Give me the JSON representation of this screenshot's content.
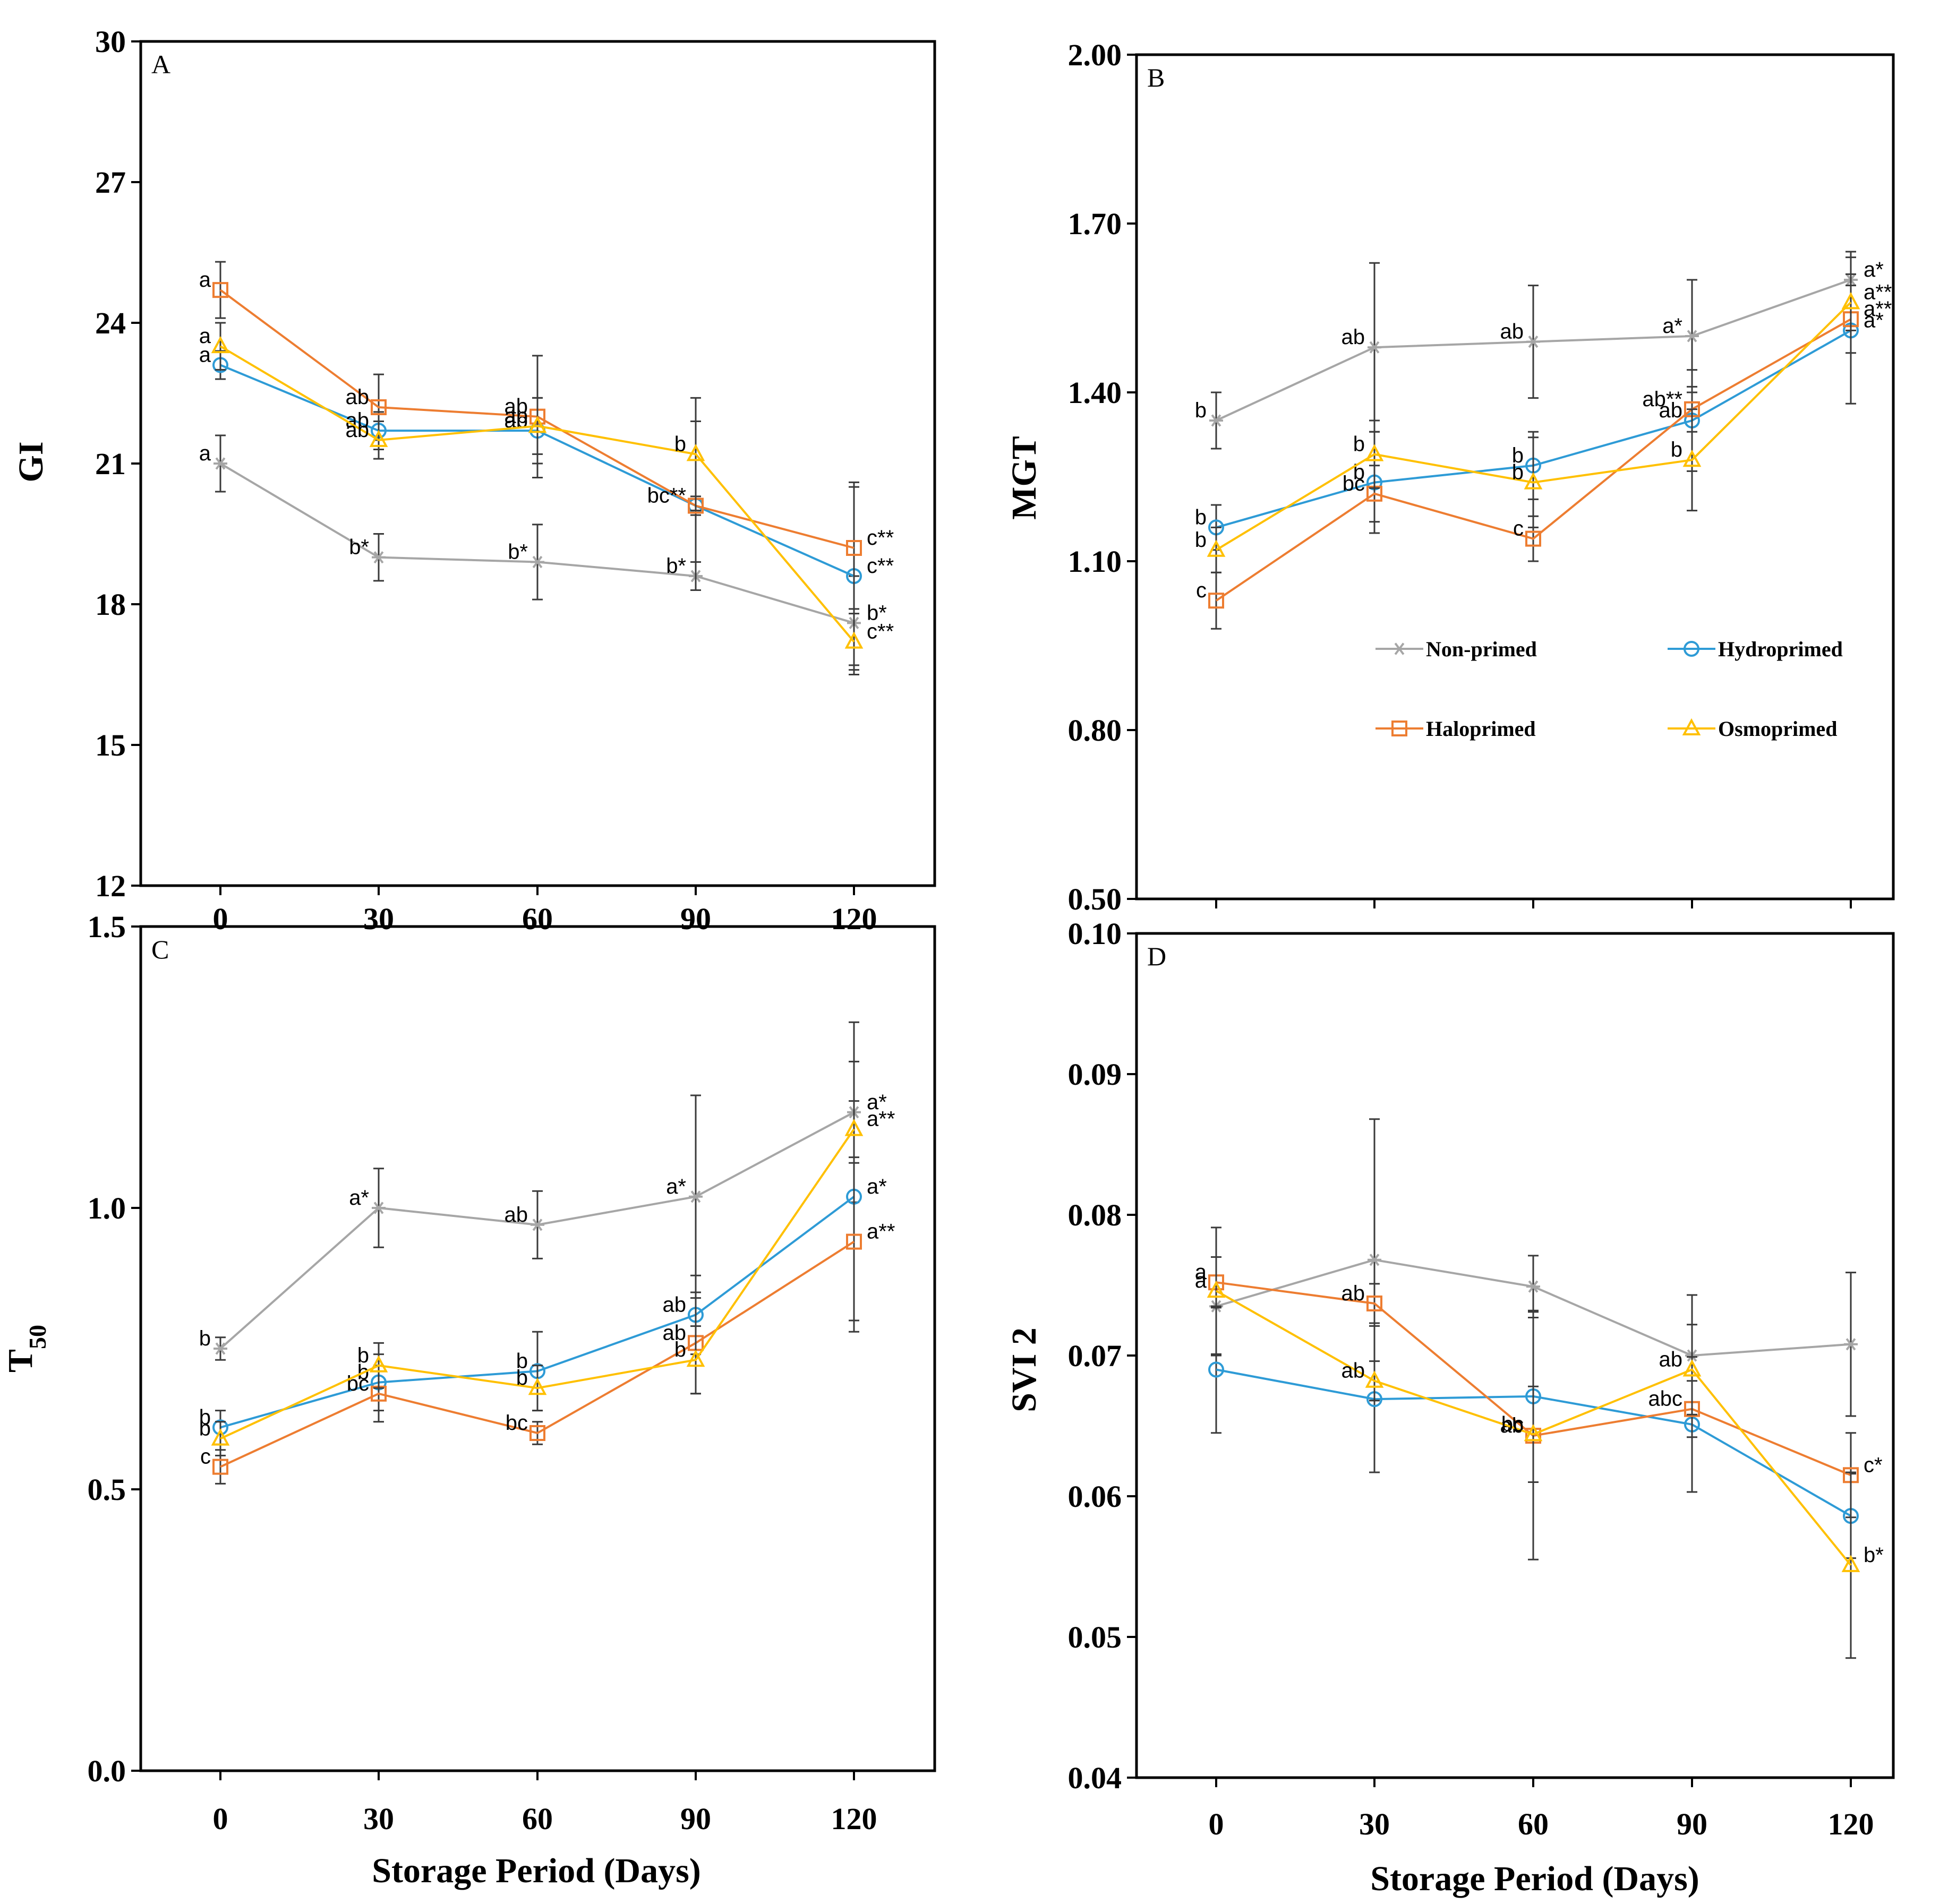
{
  "legend": {
    "non_primed": "Non-primed",
    "hydroprimed": "Hydroprimed",
    "haloprimed": "Haloprimed",
    "osmoprimed": "Osmoprimed"
  },
  "colors": {
    "non_primed": "#a6a6a6",
    "hydroprimed": "#2e9bd6",
    "haloprimed": "#ed7d31",
    "osmoprimed": "#ffc000"
  },
  "chart_data": [
    {
      "panel": "A",
      "type": "line",
      "ylabel": "GI",
      "xlabel": "",
      "x": [
        0,
        30,
        60,
        90,
        120
      ],
      "xticks": [
        "0",
        "30",
        "60",
        "90",
        "120"
      ],
      "ylim": [
        12,
        30
      ],
      "yticks": [
        "12",
        "15",
        "18",
        "21",
        "24",
        "27",
        "30"
      ],
      "series": [
        {
          "key": "non_primed",
          "marker": "star",
          "values": [
            21.0,
            19.0,
            18.9,
            18.6,
            17.6
          ],
          "err": [
            0.6,
            0.5,
            0.8,
            0.3,
            1.0
          ],
          "labels": [
            "a",
            "b*",
            "b*",
            "b*",
            "b*"
          ]
        },
        {
          "key": "hydroprimed",
          "marker": "circle",
          "values": [
            23.1,
            21.7,
            21.7,
            20.1,
            18.6
          ],
          "err": [
            0.3,
            0.4,
            0.7,
            0.2,
            1.9
          ],
          "labels": [
            "a",
            "ab",
            "ab",
            "",
            "c**"
          ]
        },
        {
          "key": "haloprimed",
          "marker": "square",
          "values": [
            24.7,
            22.2,
            22.0,
            20.1,
            19.2
          ],
          "err": [
            0.6,
            0.7,
            1.3,
            1.8,
            1.4
          ],
          "labels": [
            "a",
            "ab",
            "ab",
            "bc**",
            "c**"
          ]
        },
        {
          "key": "osmoprimed",
          "marker": "triangle",
          "values": [
            23.5,
            21.5,
            21.8,
            21.2,
            17.2
          ],
          "err": [
            0.5,
            0.4,
            0.6,
            1.2,
            0.7
          ],
          "labels": [
            "a",
            "ab",
            "ab",
            "b",
            "c**"
          ]
        }
      ]
    },
    {
      "panel": "B",
      "type": "line",
      "ylabel": "MGT",
      "xlabel": "",
      "x": [
        0,
        30,
        60,
        90,
        120
      ],
      "xticks": [
        "",
        "",
        "",
        "",
        ""
      ],
      "ylim": [
        0.5,
        2.0
      ],
      "yticks": [
        "0.50",
        "0.80",
        "1.10",
        "1.40",
        "1.70",
        "2.00"
      ],
      "series": [
        {
          "key": "non_primed",
          "marker": "star",
          "values": [
            1.35,
            1.48,
            1.49,
            1.5,
            1.6
          ],
          "err": [
            0.05,
            0.15,
            0.1,
            0.1,
            0.05
          ],
          "labels": [
            "b",
            "ab",
            "ab",
            "a*",
            "a*"
          ]
        },
        {
          "key": "hydroprimed",
          "marker": "circle",
          "values": [
            1.16,
            1.24,
            1.27,
            1.35,
            1.51
          ],
          "err": [
            0.04,
            0.09,
            0.06,
            0.09,
            0.13
          ],
          "labels": [
            "b",
            "b",
            "b",
            "ab",
            "a*"
          ]
        },
        {
          "key": "haloprimed",
          "marker": "square",
          "values": [
            1.03,
            1.22,
            1.14,
            1.37,
            1.53
          ],
          "err": [
            0.05,
            0.05,
            0.04,
            0.04,
            0.06
          ],
          "labels": [
            "c",
            "bc",
            "c",
            "ab**",
            "a**"
          ]
        },
        {
          "key": "osmoprimed",
          "marker": "triangle",
          "values": [
            1.12,
            1.29,
            1.24,
            1.28,
            1.56
          ],
          "err": [
            0.04,
            0.06,
            0.08,
            0.09,
            0.05
          ],
          "labels": [
            "b",
            "b",
            "b",
            "b",
            "a**"
          ]
        }
      ]
    },
    {
      "panel": "C",
      "type": "line",
      "ylabel": "T",
      "ylabel_sub": "50",
      "xlabel": "Storage Period (Days)",
      "x": [
        0,
        30,
        60,
        90,
        120
      ],
      "xticks": [
        "0",
        "30",
        "60",
        "90",
        "120"
      ],
      "ylim": [
        0.0,
        1.5
      ],
      "yticks": [
        "0.0",
        "0.5",
        "1.0",
        "1.5"
      ],
      "series": [
        {
          "key": "non_primed",
          "marker": "star",
          "values": [
            0.75,
            1.0,
            0.97,
            1.02,
            1.17
          ],
          "err": [
            0.02,
            0.07,
            0.06,
            0.18,
            0.16
          ],
          "labels": [
            "b",
            "a*",
            "ab",
            "a*",
            "a*"
          ]
        },
        {
          "key": "hydroprimed",
          "marker": "circle",
          "values": [
            0.61,
            0.69,
            0.71,
            0.81,
            1.02
          ],
          "err": [
            0.03,
            0.05,
            0.07,
            0.07,
            0.24
          ],
          "labels": [
            "b",
            "b",
            "b",
            "ab",
            "a*"
          ]
        },
        {
          "key": "haloprimed",
          "marker": "square",
          "values": [
            0.54,
            0.67,
            0.6,
            0.76,
            0.94
          ],
          "err": [
            0.03,
            0.05,
            0.02,
            0.09,
            0.14
          ],
          "labels": [
            "c",
            "bc",
            "bc",
            "ab",
            "a**"
          ]
        },
        {
          "key": "osmoprimed",
          "marker": "triangle",
          "values": [
            0.59,
            0.72,
            0.68,
            0.73,
            1.14
          ],
          "err": [
            0.03,
            0.04,
            0.04,
            0.06,
            0.05
          ],
          "labels": [
            "b",
            "b",
            "b",
            "b",
            "a**"
          ]
        }
      ]
    },
    {
      "panel": "D",
      "type": "line",
      "ylabel": "SVI 2",
      "xlabel": "Storage Period (Days)",
      "x": [
        0,
        30,
        60,
        90,
        120
      ],
      "xticks": [
        "0",
        "30",
        "60",
        "90",
        "120"
      ],
      "ylim": [
        0.04,
        0.1
      ],
      "yticks": [
        "0.04",
        "0.05",
        "0.06",
        "0.07",
        "0.08",
        "0.09",
        "0.10"
      ],
      "series": [
        {
          "key": "non_primed",
          "marker": "star",
          "values": [
            0.0735,
            0.0768,
            0.0749,
            0.07,
            0.0708
          ],
          "err": [
            0.0035,
            0.01,
            0.0022,
            0.0043,
            0.0051
          ],
          "labels": [
            "",
            "",
            "",
            "",
            ""
          ]
        },
        {
          "key": "hydroprimed",
          "marker": "circle",
          "values": [
            0.069,
            0.0669,
            0.0671,
            0.0651,
            0.0586
          ],
          "err": [
            0.0045,
            0.0052,
            0.0061,
            0.0048,
            0.003
          ],
          "labels": [
            "",
            "",
            "",
            "",
            ""
          ]
        },
        {
          "key": "haloprimed",
          "marker": "square",
          "values": [
            0.0752,
            0.0737,
            0.0643,
            0.0662,
            0.0615
          ],
          "err": [
            0.0018,
            0.0014,
            0.0088,
            0.002,
            0.003
          ],
          "labels": [
            "a",
            "ab",
            "ab",
            "abc",
            "c*"
          ]
        },
        {
          "key": "osmoprimed",
          "marker": "triangle",
          "values": [
            0.0746,
            0.0682,
            0.0644,
            0.069,
            0.0551
          ],
          "err": [
            0.0045,
            0.0014,
            0.0034,
            0.0032,
            0.0066
          ],
          "labels": [
            "a",
            "ab",
            "bc",
            "ab",
            "b*"
          ]
        }
      ]
    }
  ]
}
